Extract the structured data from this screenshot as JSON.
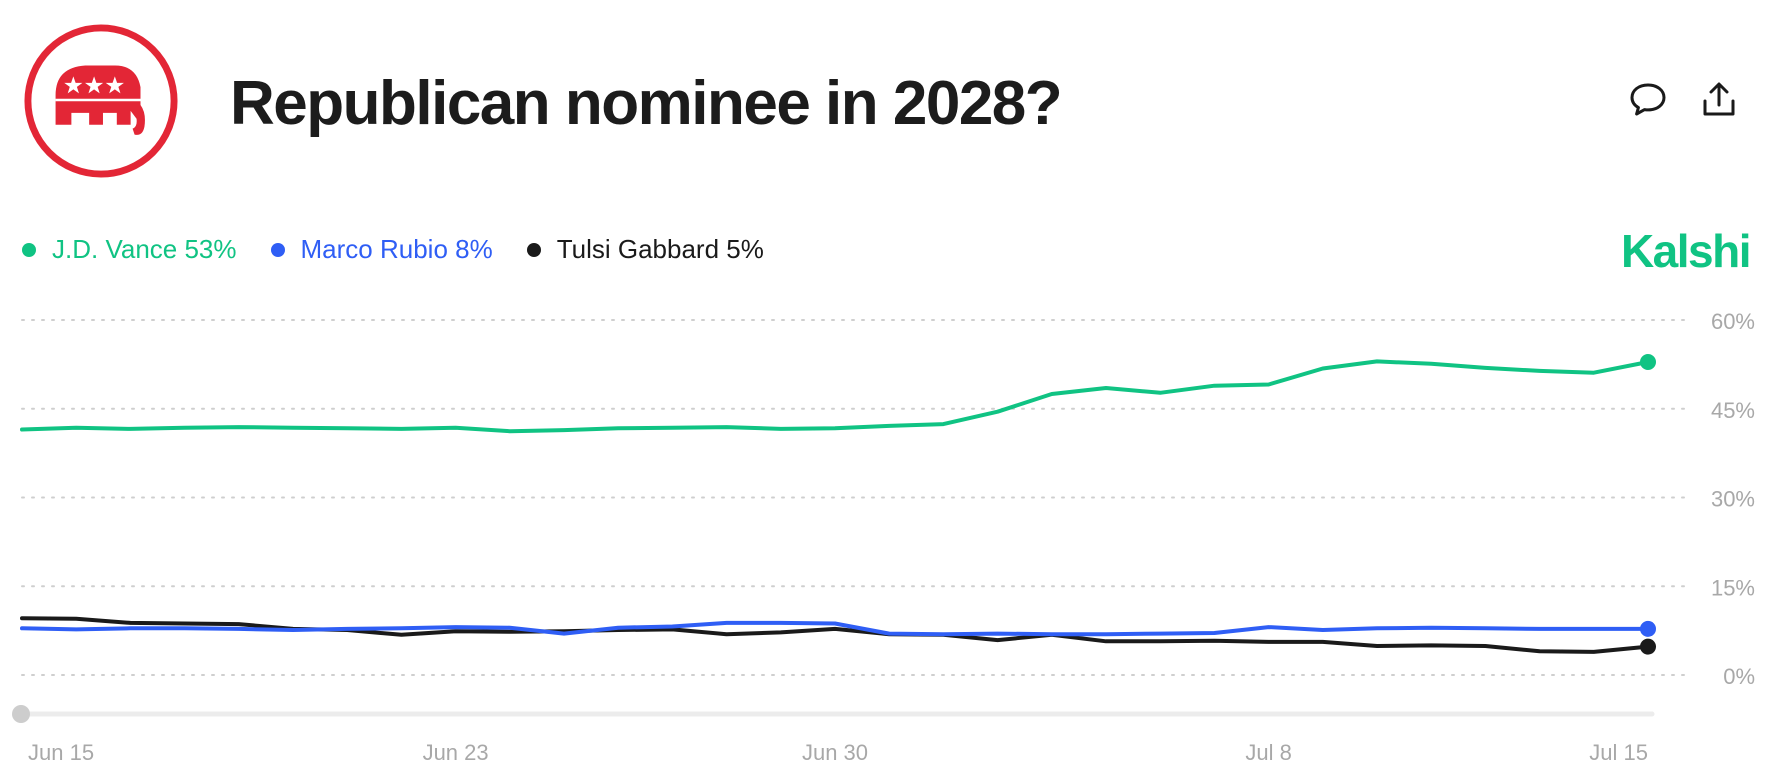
{
  "header": {
    "title": "Republican nominee in 2028?",
    "logo_icon": "republican-elephant-icon",
    "comment_icon": "comment-icon",
    "share_icon": "share-icon"
  },
  "brand": {
    "name": "Kalshi",
    "color": "#10c383"
  },
  "legend": [
    {
      "label": "J.D. Vance 53%",
      "color": "#10c383"
    },
    {
      "label": "Marco Rubio 8%",
      "color": "#2f5ef5"
    },
    {
      "label": "Tulsi Gabbard 5%",
      "color": "#1a1a1a"
    }
  ],
  "chart_data": {
    "type": "line",
    "title": "",
    "xlabel": "",
    "ylabel": "",
    "ylim": [
      0,
      60
    ],
    "y_ticks": [
      0,
      15,
      30,
      45,
      60
    ],
    "y_tick_labels": [
      "0%",
      "15%",
      "30%",
      "45%",
      "60%"
    ],
    "x_tick_labels": [
      "Jun 15",
      "Jun 23",
      "Jun 30",
      "Jul 8",
      "Jul 15"
    ],
    "x_tick_dates": [
      "2025-06-15",
      "2025-06-23",
      "2025-06-30",
      "2025-07-08",
      "2025-07-15"
    ],
    "x": [
      "2025-06-15",
      "2025-06-16",
      "2025-06-17",
      "2025-06-18",
      "2025-06-19",
      "2025-06-20",
      "2025-06-21",
      "2025-06-22",
      "2025-06-23",
      "2025-06-24",
      "2025-06-25",
      "2025-06-26",
      "2025-06-27",
      "2025-06-28",
      "2025-06-29",
      "2025-06-30",
      "2025-07-01",
      "2025-07-02",
      "2025-07-03",
      "2025-07-04",
      "2025-07-05",
      "2025-07-06",
      "2025-07-07",
      "2025-07-08",
      "2025-07-09",
      "2025-07-10",
      "2025-07-11",
      "2025-07-12",
      "2025-07-13",
      "2025-07-14",
      "2025-07-15"
    ],
    "grid": "horizontal dotted",
    "legend_position": "top-left",
    "series": [
      {
        "name": "J.D. Vance",
        "color": "#10c383",
        "values": [
          41.5,
          41.8,
          41.6,
          41.8,
          41.9,
          41.8,
          41.7,
          41.6,
          41.8,
          41.2,
          41.4,
          41.7,
          41.8,
          41.9,
          41.6,
          41.7,
          42.1,
          42.4,
          44.5,
          47.5,
          48.5,
          47.7,
          48.9,
          49.1,
          51.8,
          53.0,
          52.6,
          51.9,
          51.4,
          51.1,
          52.9
        ]
      },
      {
        "name": "Marco Rubio",
        "color": "#2f5ef5",
        "values": [
          7.9,
          7.7,
          7.9,
          7.9,
          7.8,
          7.6,
          7.8,
          7.9,
          8.1,
          8.0,
          7.0,
          8.0,
          8.2,
          8.8,
          8.8,
          8.7,
          7.0,
          6.9,
          7.0,
          6.9,
          6.9,
          7.0,
          7.1,
          8.1,
          7.6,
          7.9,
          8.0,
          7.9,
          7.8,
          7.8,
          7.8
        ]
      },
      {
        "name": "Tulsi Gabbard",
        "color": "#1a1a1a",
        "values": [
          9.6,
          9.5,
          8.8,
          8.7,
          8.6,
          7.8,
          7.6,
          6.8,
          7.4,
          7.3,
          7.4,
          7.6,
          7.7,
          6.9,
          7.2,
          7.8,
          6.9,
          6.8,
          5.9,
          6.8,
          5.7,
          5.7,
          5.8,
          5.6,
          5.6,
          4.9,
          5.0,
          4.9,
          4.0,
          3.9,
          4.8
        ]
      }
    ]
  }
}
